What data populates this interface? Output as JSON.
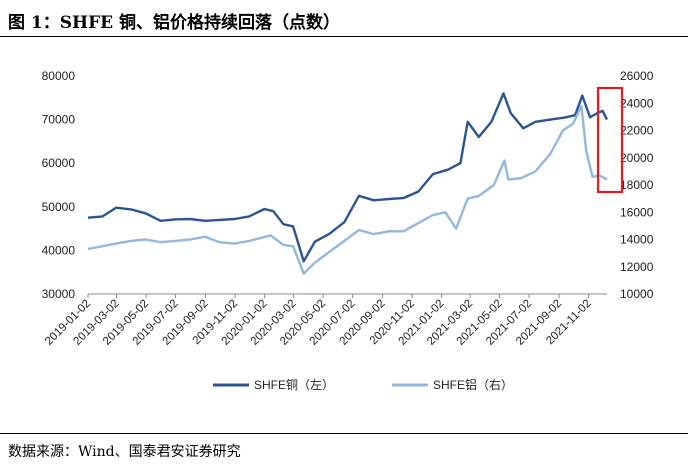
{
  "figure": {
    "title": "图 1：SHFE 铜、铝价格持续回落（点数）",
    "source": "数据来源：Wind、国泰君安证券研究"
  },
  "colors": {
    "copper": "#2B5592",
    "aluminum": "#93B7DD",
    "highlight": "#E02020",
    "axis": "#888888",
    "text": "#222222"
  },
  "chart_data": {
    "type": "line",
    "grid": false,
    "legend_position": "bottom",
    "x_ticks": [
      "2019-01-02",
      "2019-03-02",
      "2019-05-02",
      "2019-07-02",
      "2019-09-02",
      "2019-11-02",
      "2020-01-02",
      "2020-03-02",
      "2020-05-02",
      "2020-07-02",
      "2020-09-02",
      "2020-11-02",
      "2021-01-02",
      "2021-03-02",
      "2021-05-02",
      "2021-07-02",
      "2021-09-02",
      "2021-11-02"
    ],
    "y_left": {
      "min": 30000,
      "max": 80000,
      "ticks": [
        "30000",
        "40000",
        "50000",
        "60000",
        "70000",
        "80000"
      ]
    },
    "y_right": {
      "min": 10000,
      "max": 26000,
      "ticks": [
        "10000",
        "12000",
        "14000",
        "16000",
        "18000",
        "20000",
        "22000",
        "24000",
        "26000"
      ]
    },
    "series": [
      {
        "name": "SHFE铜（左）",
        "axis": "left",
        "points": [
          [
            "2019-01-02",
            47500
          ],
          [
            "2019-02-01",
            47800
          ],
          [
            "2019-03-01",
            49800
          ],
          [
            "2019-04-01",
            49400
          ],
          [
            "2019-05-01",
            48500
          ],
          [
            "2019-06-01",
            46800
          ],
          [
            "2019-07-01",
            47100
          ],
          [
            "2019-08-01",
            47200
          ],
          [
            "2019-09-01",
            46800
          ],
          [
            "2019-10-01",
            47000
          ],
          [
            "2019-11-01",
            47200
          ],
          [
            "2019-12-01",
            47800
          ],
          [
            "2020-01-02",
            49500
          ],
          [
            "2020-01-20",
            49000
          ],
          [
            "2020-02-10",
            46000
          ],
          [
            "2020-03-01",
            45500
          ],
          [
            "2020-03-23",
            37500
          ],
          [
            "2020-04-15",
            42000
          ],
          [
            "2020-05-15",
            43800
          ],
          [
            "2020-06-15",
            46500
          ],
          [
            "2020-07-15",
            52500
          ],
          [
            "2020-08-15",
            51500
          ],
          [
            "2020-09-15",
            51800
          ],
          [
            "2020-10-15",
            52000
          ],
          [
            "2020-11-15",
            53500
          ],
          [
            "2020-12-15",
            57500
          ],
          [
            "2021-01-15",
            58500
          ],
          [
            "2021-02-10",
            60000
          ],
          [
            "2021-02-25",
            69500
          ],
          [
            "2021-03-20",
            66000
          ],
          [
            "2021-04-15",
            69500
          ],
          [
            "2021-05-10",
            76000
          ],
          [
            "2021-05-25",
            71500
          ],
          [
            "2021-06-20",
            68000
          ],
          [
            "2021-07-15",
            69500
          ],
          [
            "2021-08-15",
            70000
          ],
          [
            "2021-09-15",
            70500
          ],
          [
            "2021-10-05",
            71000
          ],
          [
            "2021-10-20",
            75500
          ],
          [
            "2021-11-05",
            70500
          ],
          [
            "2021-11-20",
            71500
          ],
          [
            "2021-12-01",
            72000
          ],
          [
            "2021-12-10",
            70000
          ]
        ]
      },
      {
        "name": "SHFE铝（右）",
        "axis": "right",
        "points": [
          [
            "2019-01-02",
            13300
          ],
          [
            "2019-03-01",
            13700
          ],
          [
            "2019-04-01",
            13900
          ],
          [
            "2019-05-01",
            14000
          ],
          [
            "2019-06-01",
            13800
          ],
          [
            "2019-07-01",
            13900
          ],
          [
            "2019-08-01",
            14000
          ],
          [
            "2019-09-01",
            14200
          ],
          [
            "2019-10-01",
            13800
          ],
          [
            "2019-11-01",
            13700
          ],
          [
            "2019-12-01",
            13900
          ],
          [
            "2020-01-15",
            14300
          ],
          [
            "2020-02-10",
            13600
          ],
          [
            "2020-03-01",
            13500
          ],
          [
            "2020-03-23",
            11500
          ],
          [
            "2020-04-15",
            12300
          ],
          [
            "2020-05-15",
            13100
          ],
          [
            "2020-06-15",
            13900
          ],
          [
            "2020-07-15",
            14700
          ],
          [
            "2020-08-15",
            14400
          ],
          [
            "2020-09-15",
            14600
          ],
          [
            "2020-10-15",
            14600
          ],
          [
            "2020-11-15",
            15200
          ],
          [
            "2020-12-15",
            15800
          ],
          [
            "2021-01-10",
            16000
          ],
          [
            "2021-02-01",
            14800
          ],
          [
            "2021-02-25",
            17000
          ],
          [
            "2021-03-20",
            17200
          ],
          [
            "2021-04-20",
            18000
          ],
          [
            "2021-05-12",
            19800
          ],
          [
            "2021-05-20",
            18400
          ],
          [
            "2021-06-15",
            18500
          ],
          [
            "2021-07-15",
            19000
          ],
          [
            "2021-08-15",
            20300
          ],
          [
            "2021-09-10",
            22000
          ],
          [
            "2021-10-01",
            22500
          ],
          [
            "2021-10-18",
            23800
          ],
          [
            "2021-10-28",
            20500
          ],
          [
            "2021-11-10",
            18600
          ],
          [
            "2021-11-25",
            18700
          ],
          [
            "2021-12-10",
            18400
          ]
        ]
      }
    ]
  }
}
